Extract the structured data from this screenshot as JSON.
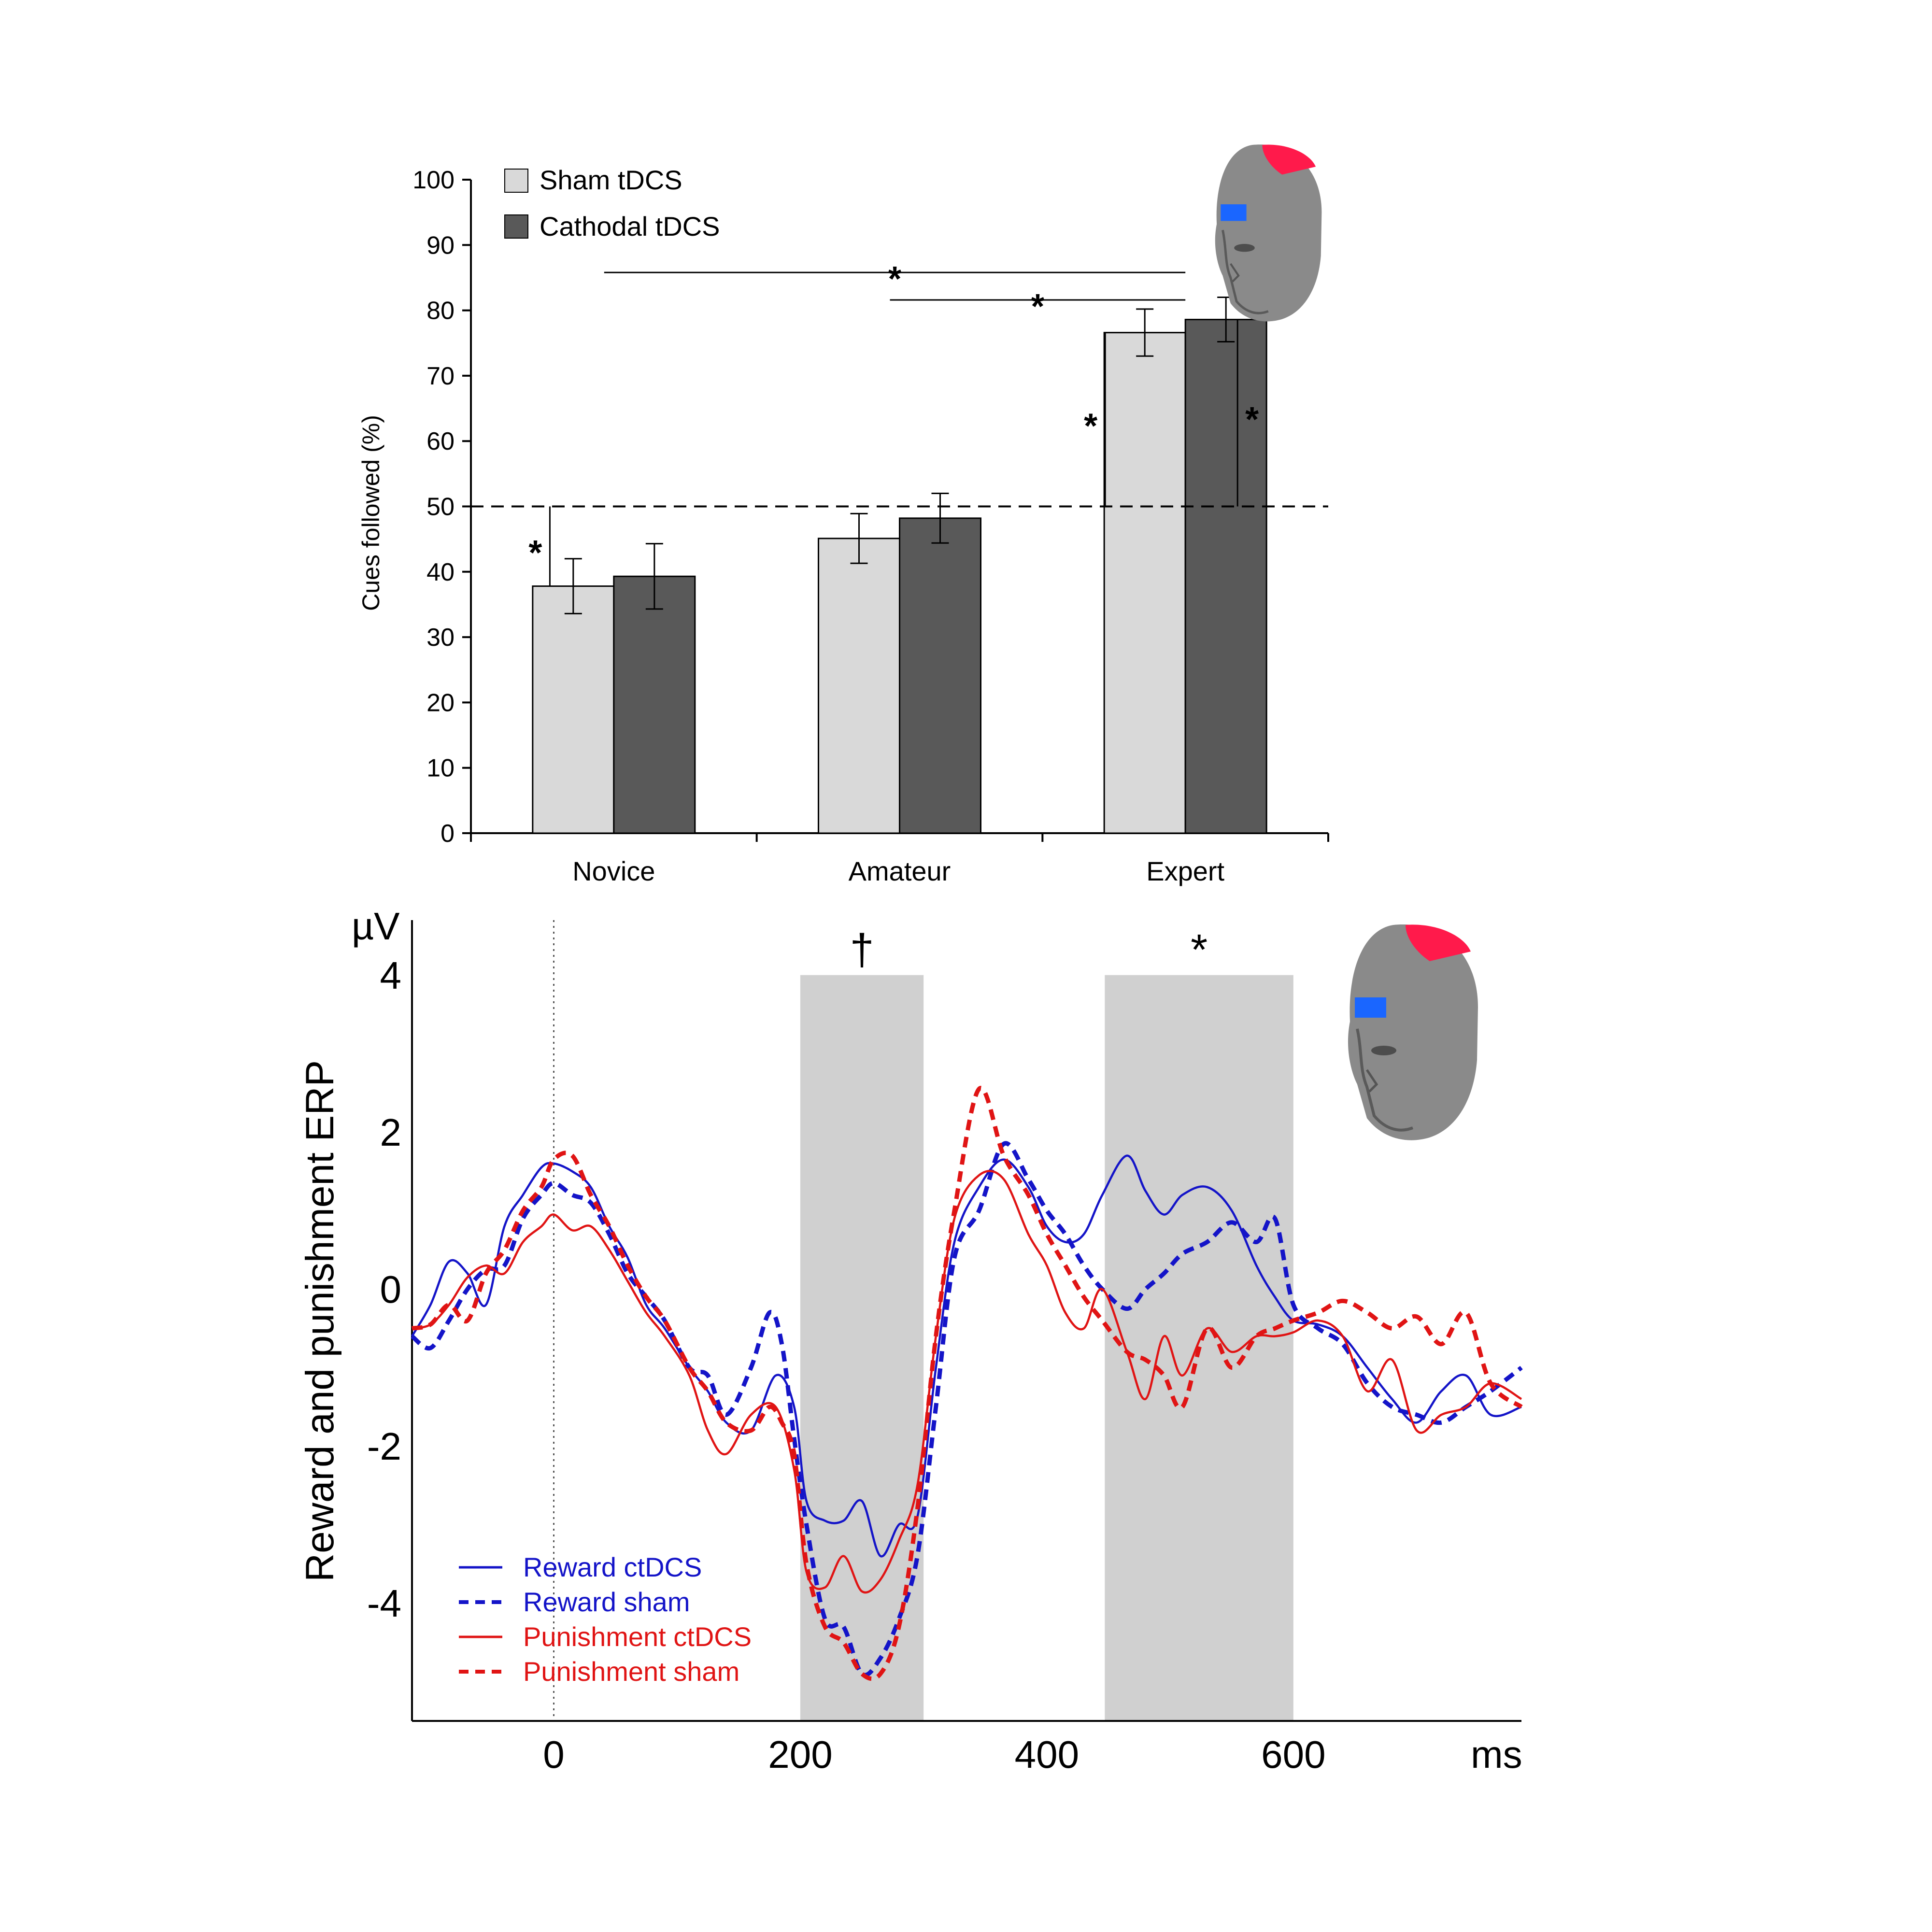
{
  "chart_data": [
    {
      "type": "bar",
      "ylabel": "Cues followed (%)",
      "xlabel": "",
      "ylim": [
        0,
        100
      ],
      "yticks": [
        "0",
        "10",
        "20",
        "30",
        "40",
        "50",
        "60",
        "70",
        "80",
        "90",
        "100"
      ],
      "categories": [
        "Novice",
        "Amateur",
        "Expert"
      ],
      "series": [
        {
          "name": "Sham tDCS",
          "color": "#d9d9d9",
          "values": [
            37.8,
            45.1,
            76.6
          ],
          "errors": [
            4.2,
            3.8,
            3.6
          ]
        },
        {
          "name": "Cathodal tDCS",
          "color": "#595959",
          "values": [
            39.3,
            48.2,
            78.6
          ],
          "errors": [
            5.0,
            3.8,
            3.4
          ]
        }
      ],
      "reference_line": {
        "y": 50,
        "style": "dashed"
      },
      "significance": [
        {
          "label": "*",
          "type": "bracket",
          "from_category": "Novice",
          "to_category": "Expert",
          "y": 85.8
        },
        {
          "label": "*",
          "type": "bracket",
          "from_category": "Amateur",
          "to_category": "Expert",
          "y": 81.6
        },
        {
          "label": "*",
          "type": "vs-chance",
          "category": "Novice",
          "series": "Sham tDCS"
        },
        {
          "label": "*",
          "type": "vs-chance",
          "category": "Expert",
          "series": "Sham tDCS"
        },
        {
          "label": "*",
          "type": "vs-chance",
          "category": "Expert",
          "series": "Cathodal tDCS"
        }
      ],
      "legend_position": "top-left",
      "inset_icon": "head-electrode-icon"
    },
    {
      "type": "line",
      "ylabel": "Reward and punishment ERP",
      "yunit": "µV",
      "xunit": "ms",
      "xlim": [
        -115,
        785
      ],
      "ylim": [
        -5.5,
        4.7
      ],
      "xticks": [
        "0",
        "200",
        "400",
        "600"
      ],
      "yticks": [
        "4",
        "2",
        "0",
        "-2",
        "-4"
      ],
      "onset_line_x": 0,
      "shaded_windows": [
        {
          "x": [
            200,
            300
          ],
          "label": "†"
        },
        {
          "x": [
            447,
            600
          ],
          "label": "*"
        }
      ],
      "series": [
        {
          "name": "Reward ctDCS",
          "color": "#1414c8",
          "dash": "solid",
          "x": [
            -115,
            -100,
            -85,
            -70,
            -55,
            -40,
            -25,
            -10,
            0,
            15,
            30,
            45,
            60,
            75,
            90,
            110,
            125,
            140,
            160,
            180,
            195,
            205,
            220,
            235,
            250,
            265,
            280,
            295,
            310,
            325,
            345,
            365,
            385,
            400,
            415,
            430,
            445,
            465,
            480,
            495,
            510,
            530,
            550,
            570,
            585,
            600,
            620,
            640,
            660,
            680,
            700,
            720,
            740,
            760,
            785
          ],
          "y": [
            -0.6,
            -0.2,
            0.35,
            0.2,
            -0.2,
            0.8,
            1.2,
            1.55,
            1.6,
            1.5,
            1.3,
            0.8,
            0.4,
            -0.2,
            -0.5,
            -1.0,
            -1.3,
            -1.7,
            -1.8,
            -1.1,
            -1.5,
            -2.7,
            -2.95,
            -2.95,
            -2.7,
            -3.4,
            -3.0,
            -2.9,
            -1.0,
            0.6,
            1.3,
            1.65,
            1.3,
            0.8,
            0.6,
            0.7,
            1.2,
            1.7,
            1.25,
            0.95,
            1.2,
            1.3,
            1.0,
            0.3,
            -0.1,
            -0.4,
            -0.45,
            -0.6,
            -1.0,
            -1.4,
            -1.7,
            -1.3,
            -1.1,
            -1.6,
            -1.5
          ]
        },
        {
          "name": "Reward sham",
          "color": "#1414c8",
          "dash": "dashed",
          "x": [
            -115,
            -100,
            -85,
            -70,
            -55,
            -40,
            -25,
            -10,
            0,
            15,
            30,
            45,
            60,
            75,
            90,
            110,
            125,
            140,
            160,
            175,
            185,
            195,
            205,
            220,
            235,
            250,
            265,
            280,
            295,
            310,
            325,
            345,
            365,
            385,
            400,
            415,
            430,
            445,
            465,
            480,
            495,
            510,
            530,
            550,
            570,
            585,
            600,
            620,
            640,
            660,
            680,
            700,
            720,
            740,
            760,
            785
          ],
          "y": [
            -0.6,
            -0.75,
            -0.4,
            0.0,
            0.25,
            0.3,
            0.9,
            1.2,
            1.35,
            1.2,
            1.1,
            0.7,
            0.2,
            -0.1,
            -0.4,
            -1.0,
            -1.1,
            -1.6,
            -1.0,
            -0.3,
            -0.7,
            -1.9,
            -3.0,
            -4.2,
            -4.3,
            -4.9,
            -4.7,
            -4.2,
            -3.4,
            -1.5,
            0.4,
            1.0,
            1.85,
            1.4,
            1.0,
            0.7,
            0.3,
            0.0,
            -0.25,
            0.0,
            0.2,
            0.45,
            0.6,
            0.85,
            0.6,
            0.9,
            -0.2,
            -0.5,
            -0.7,
            -1.2,
            -1.5,
            -1.6,
            -1.7,
            -1.5,
            -1.3,
            -1.0
          ]
        },
        {
          "name": "Punishment ctDCS",
          "color": "#e01414",
          "dash": "solid",
          "x": [
            -115,
            -100,
            -85,
            -70,
            -55,
            -40,
            -25,
            -10,
            0,
            15,
            30,
            45,
            60,
            75,
            90,
            110,
            125,
            140,
            160,
            180,
            195,
            205,
            220,
            235,
            250,
            265,
            280,
            295,
            310,
            325,
            345,
            365,
            385,
            400,
            415,
            430,
            445,
            465,
            480,
            495,
            510,
            530,
            550,
            570,
            585,
            600,
            620,
            640,
            660,
            680,
            700,
            720,
            740,
            760,
            785
          ],
          "y": [
            -0.5,
            -0.45,
            -0.2,
            0.15,
            0.3,
            0.2,
            0.6,
            0.8,
            0.95,
            0.75,
            0.8,
            0.5,
            0.1,
            -0.3,
            -0.6,
            -1.1,
            -1.8,
            -2.1,
            -1.6,
            -1.5,
            -2.3,
            -3.6,
            -3.8,
            -3.4,
            -3.85,
            -3.7,
            -3.2,
            -2.5,
            -0.6,
            0.9,
            1.45,
            1.4,
            0.7,
            0.3,
            -0.3,
            -0.5,
            0.0,
            -0.8,
            -1.4,
            -0.6,
            -1.1,
            -0.5,
            -0.8,
            -0.6,
            -0.6,
            -0.55,
            -0.4,
            -0.6,
            -1.3,
            -0.9,
            -1.8,
            -1.6,
            -1.5,
            -1.2,
            -1.4
          ]
        },
        {
          "name": "Punishment sham",
          "color": "#e01414",
          "dash": "dashed",
          "x": [
            -115,
            -100,
            -85,
            -70,
            -55,
            -40,
            -25,
            -10,
            0,
            15,
            30,
            45,
            60,
            75,
            90,
            110,
            125,
            140,
            160,
            175,
            185,
            195,
            205,
            220,
            235,
            250,
            265,
            280,
            295,
            310,
            325,
            345,
            365,
            385,
            400,
            415,
            430,
            445,
            465,
            480,
            495,
            510,
            530,
            550,
            570,
            585,
            600,
            620,
            640,
            660,
            680,
            700,
            720,
            740,
            760,
            785
          ],
          "y": [
            -0.5,
            -0.45,
            -0.2,
            -0.4,
            0.2,
            0.5,
            1.0,
            1.3,
            1.65,
            1.7,
            1.2,
            0.8,
            0.3,
            -0.1,
            -0.4,
            -1.0,
            -1.3,
            -1.7,
            -1.8,
            -1.5,
            -1.7,
            -2.1,
            -3.5,
            -4.3,
            -4.5,
            -4.9,
            -4.9,
            -4.3,
            -2.8,
            -0.6,
            1.0,
            2.55,
            1.7,
            1.2,
            0.7,
            0.3,
            -0.1,
            -0.4,
            -0.8,
            -0.9,
            -1.1,
            -1.5,
            -0.5,
            -1.0,
            -0.6,
            -0.5,
            -0.4,
            -0.3,
            -0.15,
            -0.3,
            -0.5,
            -0.35,
            -0.7,
            -0.3,
            -1.2,
            -1.5
          ]
        }
      ],
      "legend_position": "bottom-left",
      "inset_icon": "head-electrode-icon"
    }
  ]
}
